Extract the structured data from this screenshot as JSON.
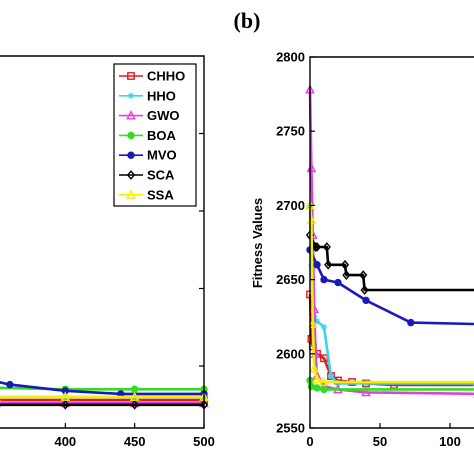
{
  "panel_label": "(b)",
  "chart_data": [
    {
      "type": "line",
      "title": "",
      "xlabel": "",
      "ylabel": "",
      "xlim": [
        350,
        500
      ],
      "ylim": [
        2560,
        2800
      ],
      "xticks": [
        400,
        450,
        500
      ],
      "legend": {
        "placement": "top-right",
        "entries": [
          "CHHO",
          "HHO",
          "GWO",
          "BOA",
          "MVO",
          "SCA",
          "SSA"
        ]
      },
      "series": [
        {
          "name": "CHHO",
          "color": "#e41a1c",
          "marker": "square",
          "x": [
            350,
            400,
            450,
            500
          ],
          "y": [
            2578,
            2578,
            2578,
            2578
          ]
        },
        {
          "name": "HHO",
          "color": "#39d4ee",
          "marker": "star",
          "x": [
            350,
            400,
            450,
            500
          ],
          "y": [
            2580,
            2580,
            2580,
            2580
          ]
        },
        {
          "name": "GWO",
          "color": "#e040e0",
          "marker": "triangle-up",
          "x": [
            350,
            400,
            450,
            500
          ],
          "y": [
            2576,
            2576,
            2576,
            2576
          ]
        },
        {
          "name": "BOA",
          "color": "#33dd22",
          "marker": "circle",
          "x": [
            350,
            400,
            450,
            500
          ],
          "y": [
            2586,
            2585,
            2585,
            2585
          ]
        },
        {
          "name": "MVO",
          "color": "#1a1ab8",
          "marker": "circle",
          "x": [
            350,
            360,
            400,
            440,
            500
          ],
          "y": [
            2590,
            2588,
            2584,
            2582,
            2582
          ]
        },
        {
          "name": "SCA",
          "color": "#000000",
          "marker": "diamond",
          "x": [
            350,
            400,
            450,
            500
          ],
          "y": [
            2575,
            2575,
            2575,
            2575
          ]
        },
        {
          "name": "SSA",
          "color": "#f0f000",
          "marker": "triangle-up",
          "x": [
            350,
            400,
            450,
            500
          ],
          "y": [
            2580,
            2580,
            2580,
            2580
          ]
        }
      ]
    },
    {
      "type": "line",
      "title": "",
      "xlabel": "",
      "ylabel": "Fitness Values",
      "xlim": [
        0,
        120
      ],
      "ylim": [
        2550,
        2800
      ],
      "xticks": [
        0,
        50,
        100
      ],
      "yticks": [
        2550,
        2600,
        2650,
        2700,
        2750,
        2800
      ],
      "grid": false,
      "series": [
        {
          "name": "CHHO",
          "color": "#e41a1c",
          "marker": "square",
          "x": [
            0,
            1,
            2,
            5,
            10,
            15,
            20,
            30,
            40,
            60,
            120
          ],
          "y": [
            2640,
            2610,
            2605,
            2600,
            2597,
            2585,
            2582,
            2581,
            2580,
            2579,
            2579
          ]
        },
        {
          "name": "HHO",
          "color": "#39d4ee",
          "marker": "star",
          "x": [
            0,
            1,
            3,
            5,
            10,
            15,
            20,
            40,
            120
          ],
          "y": [
            2700,
            2660,
            2625,
            2622,
            2618,
            2585,
            2580,
            2580,
            2580
          ]
        },
        {
          "name": "GWO",
          "color": "#e040e0",
          "marker": "triangle-up",
          "x": [
            0,
            1,
            2,
            3,
            4,
            5,
            10,
            20,
            40,
            120
          ],
          "y": [
            2778,
            2725,
            2680,
            2630,
            2600,
            2585,
            2578,
            2576,
            2574,
            2573
          ]
        },
        {
          "name": "BOA",
          "color": "#33dd22",
          "marker": "circle",
          "x": [
            0,
            1,
            5,
            10,
            120
          ],
          "y": [
            2582,
            2578,
            2577,
            2576,
            2576
          ]
        },
        {
          "name": "MVO",
          "color": "#1a1ab8",
          "marker": "circle",
          "x": [
            0,
            5,
            10,
            20,
            40,
            72,
            120
          ],
          "y": [
            2670,
            2660,
            2650,
            2648,
            2636,
            2621,
            2620
          ]
        },
        {
          "name": "SCA",
          "color": "#000000",
          "marker": "diamond",
          "x": [
            0,
            4,
            5,
            12,
            13,
            25,
            26,
            38,
            39,
            120
          ],
          "y": [
            2680,
            2672,
            2672,
            2672,
            2660,
            2660,
            2653,
            2653,
            2643,
            2643
          ]
        },
        {
          "name": "SSA",
          "color": "#f0f000",
          "marker": "triangle-up",
          "x": [
            0,
            1,
            2,
            3,
            5,
            10,
            120
          ],
          "y": [
            2700,
            2690,
            2620,
            2590,
            2583,
            2581,
            2581
          ]
        }
      ]
    }
  ]
}
